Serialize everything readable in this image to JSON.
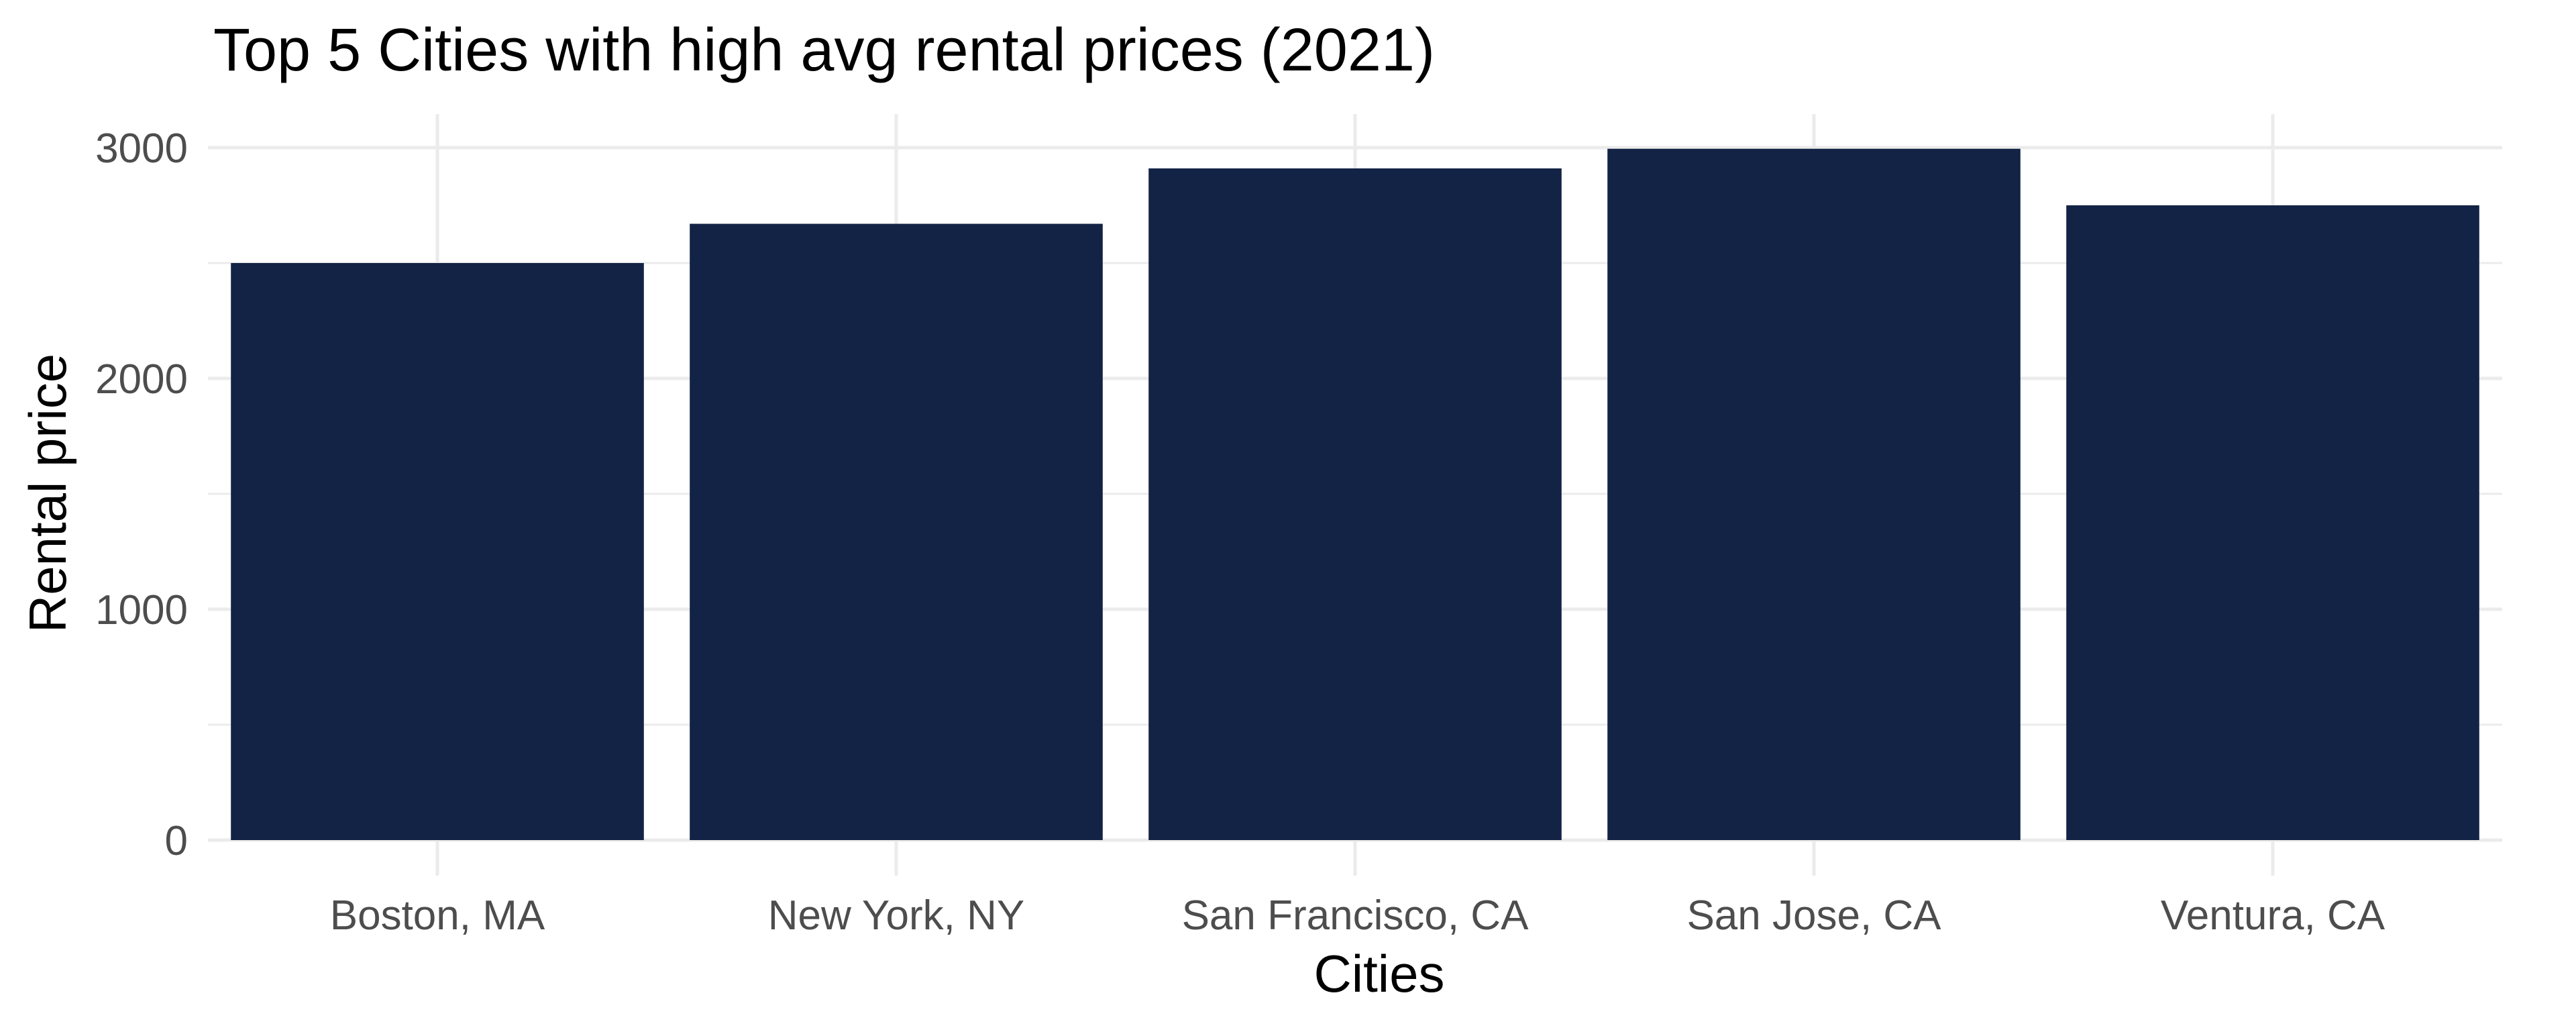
{
  "chart_data": {
    "type": "bar",
    "title": "Top 5 Cities with high avg rental prices (2021)",
    "xlabel": "Cities",
    "ylabel": "Rental price",
    "categories": [
      "Boston, MA",
      "New York, NY",
      "San Francisco, CA",
      "San Jose, CA",
      "Ventura, CA"
    ],
    "values": [
      2500,
      2670,
      2910,
      2995,
      2750
    ],
    "ylim": [
      0,
      3000
    ],
    "yticks": [
      0,
      1000,
      2000,
      3000
    ],
    "ytick_labels": [
      "0",
      "1000",
      "2000",
      "3000"
    ],
    "grid": true,
    "legend": "none",
    "colors": {
      "bar": "#132345",
      "grid": "#ebebeb",
      "tick_text": "#4d4d4d",
      "text": "#000000"
    }
  }
}
